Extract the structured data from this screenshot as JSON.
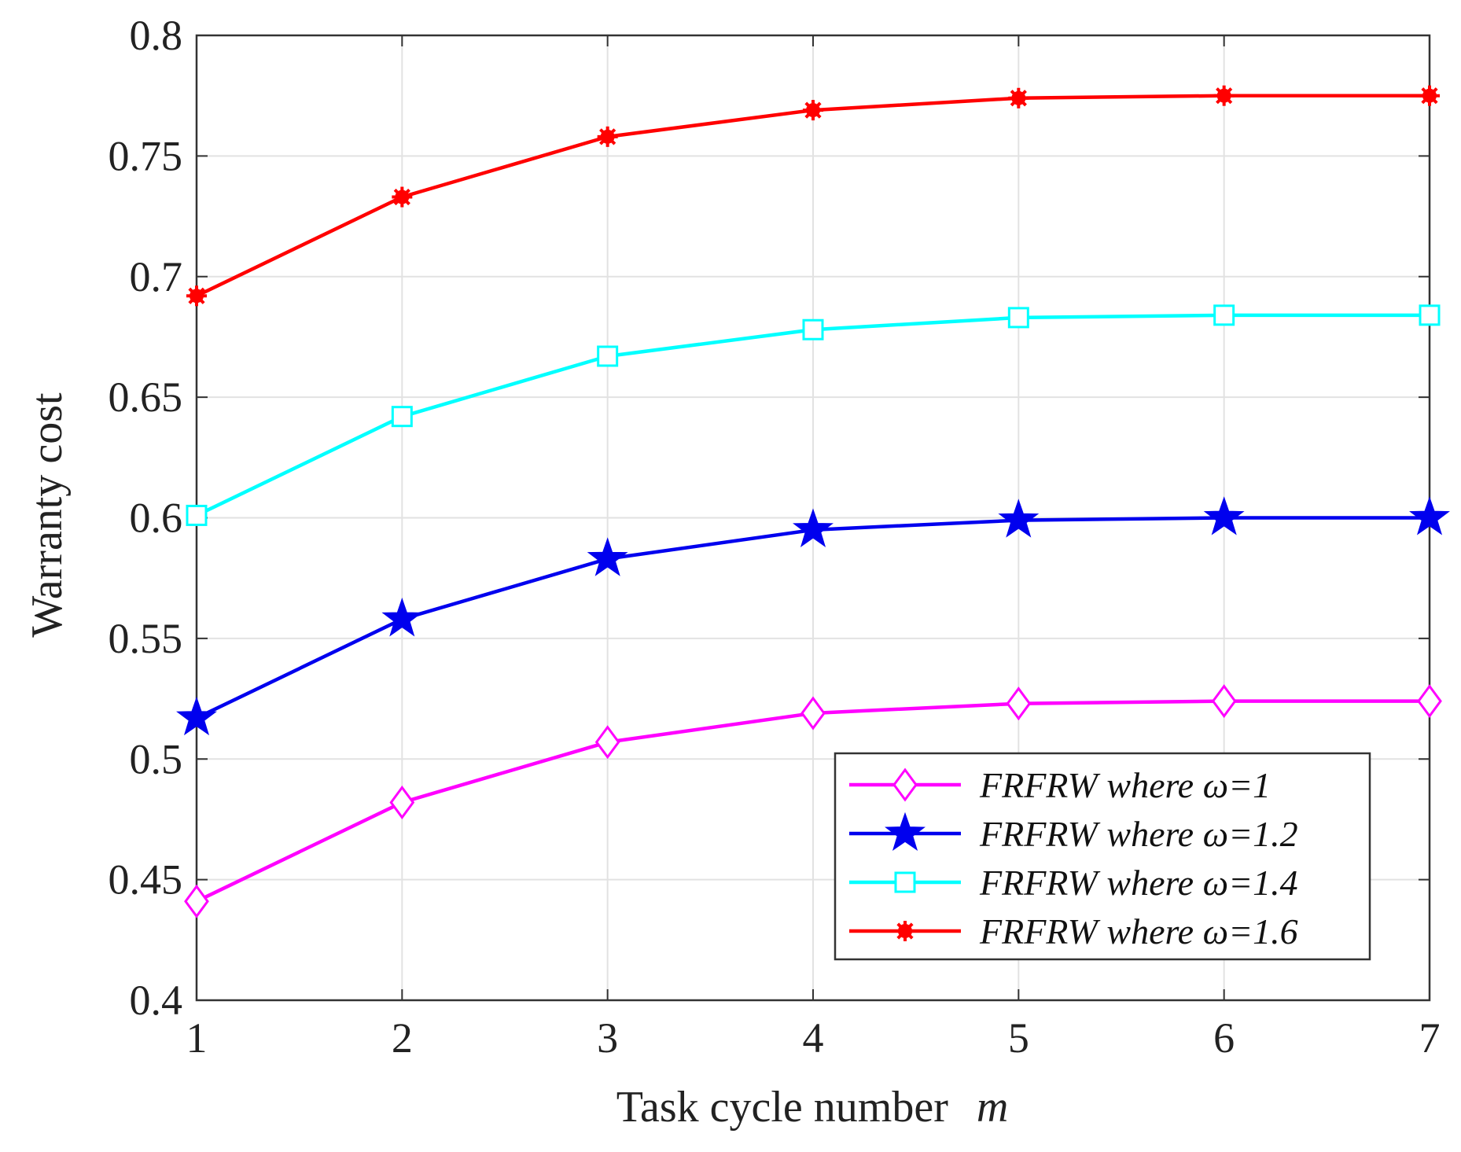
{
  "chart_data": {
    "type": "line",
    "title": "",
    "xlabel": "Task cycle number",
    "xlabel_var": "m",
    "ylabel": "Warranty cost",
    "x": [
      1,
      2,
      3,
      4,
      5,
      6,
      7
    ],
    "xlim": [
      1,
      7
    ],
    "ylim": [
      0.4,
      0.8
    ],
    "xticks": [
      "1",
      "2",
      "3",
      "4",
      "5",
      "6",
      "7"
    ],
    "yticks": [
      "0.4",
      "0.45",
      "0.5",
      "0.55",
      "0.6",
      "0.65",
      "0.7",
      "0.75",
      "0.8"
    ],
    "grid": true,
    "legend_position": "bottom-right",
    "series": [
      {
        "name": "FRFRW where ω=1",
        "color": "#ff00ff",
        "marker": "diamond",
        "values": [
          0.441,
          0.482,
          0.507,
          0.519,
          0.523,
          0.524,
          0.524
        ]
      },
      {
        "name": "FRFRW where ω=1.2",
        "color": "#0000ee",
        "marker": "star",
        "values": [
          0.517,
          0.558,
          0.583,
          0.595,
          0.599,
          0.6,
          0.6
        ]
      },
      {
        "name": "FRFRW where ω=1.4",
        "color": "#00ffff",
        "marker": "square",
        "values": [
          0.601,
          0.642,
          0.667,
          0.678,
          0.683,
          0.684,
          0.684
        ]
      },
      {
        "name": "FRFRW where ω=1.6",
        "color": "#ff0000",
        "marker": "asterisk",
        "values": [
          0.692,
          0.733,
          0.758,
          0.769,
          0.774,
          0.775,
          0.775
        ]
      }
    ]
  }
}
